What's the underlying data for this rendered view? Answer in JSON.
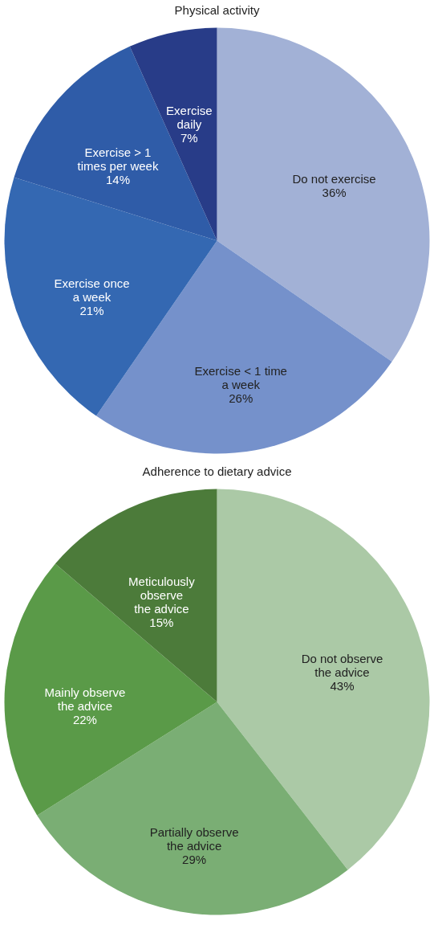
{
  "chart_data": [
    {
      "type": "pie",
      "title": "Physical activity",
      "categories": [
        "Do not exercise",
        "Exercise < 1 time\na week",
        "Exercise once\na week",
        "Exercise > 1\ntimes per week",
        "Exercise\ndaily"
      ],
      "values": [
        36,
        26,
        21,
        14,
        7
      ],
      "colors": [
        "#a2b1d6",
        "#7591cb",
        "#3468b2",
        "#2f5ca8",
        "#283c88"
      ],
      "value_labels": [
        "36%",
        "26%",
        "21%",
        "14%",
        "7%"
      ],
      "legend": false
    },
    {
      "type": "pie",
      "title": "Adherence to dietary advice",
      "categories": [
        "Do not observe\nthe advice",
        "Partially observe\nthe advice",
        "Mainly observe\nthe advice",
        "Meticulously\nobserve\nthe advice"
      ],
      "values": [
        43,
        29,
        22,
        15
      ],
      "colors": [
        "#abc9a6",
        "#7aae74",
        "#5a9a48",
        "#4c7b3a"
      ],
      "value_labels": [
        "43%",
        "29%",
        "22%",
        "15%"
      ],
      "legend": false
    }
  ]
}
